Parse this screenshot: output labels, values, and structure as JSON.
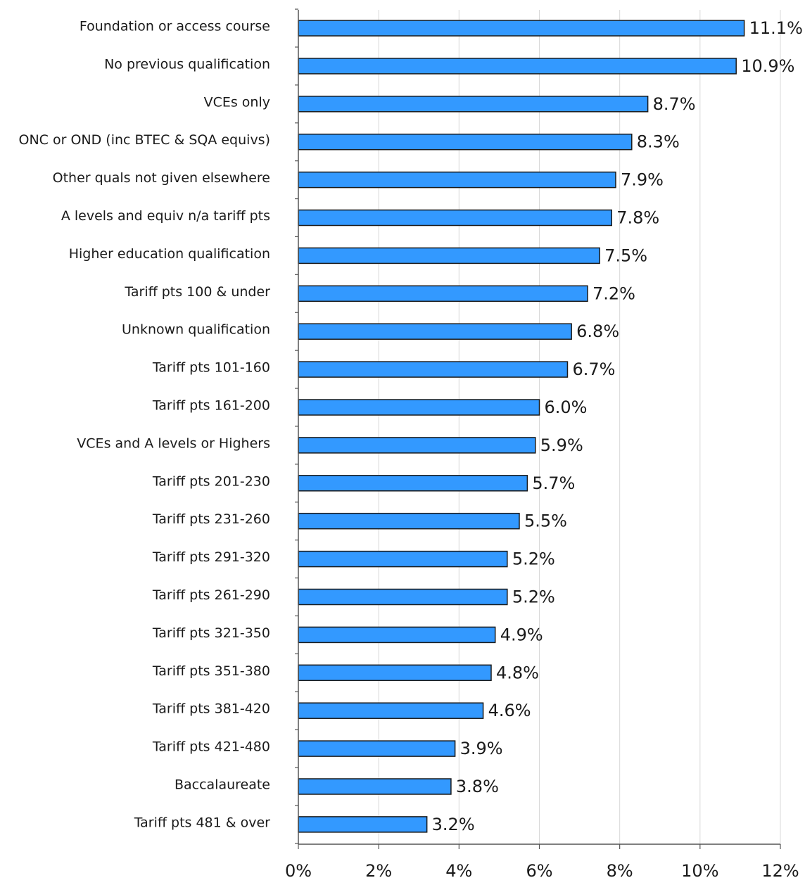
{
  "chart_data": {
    "type": "bar",
    "orientation": "horizontal",
    "categories": [
      "Foundation  or access course",
      "No previous qualification",
      "VCEs only",
      "ONC or OND (inc BTEC & SQA equivs)",
      "Other quals not given elsewhere",
      "A levels and equiv  n/a tariff pts",
      "Higher education qualification",
      "Tariff pts 100 & under",
      "Unknown qualification",
      "Tariff pts 101-160",
      "Tariff pts 161-200",
      "VCEs and A levels or Highers",
      "Tariff pts 201-230",
      "Tariff pts 231-260",
      "Tariff pts 291-320",
      "Tariff pts 261-290",
      "Tariff pts 321-350",
      "Tariff pts 351-380",
      "Tariff pts 381-420",
      "Tariff pts 421-480",
      "Baccalaureate",
      "Tariff pts 481 & over"
    ],
    "values": [
      11.1,
      10.9,
      8.7,
      8.3,
      7.9,
      7.8,
      7.5,
      7.2,
      6.8,
      6.7,
      6.0,
      5.9,
      5.7,
      5.5,
      5.2,
      5.2,
      4.9,
      4.8,
      4.6,
      3.9,
      3.8,
      3.2
    ],
    "value_labels": [
      "11.1%",
      "10.9%",
      "8.7%",
      "8.3%",
      "7.9%",
      "7.8%",
      "7.5%",
      "7.2%",
      "6.8%",
      "6.7%",
      "6.0%",
      "5.9%",
      "5.7%",
      "5.5%",
      "5.2%",
      "5.2%",
      "4.9%",
      "4.8%",
      "4.6%",
      "3.9%",
      "3.8%",
      "3.2%"
    ],
    "x_ticks": [
      0,
      2,
      4,
      6,
      8,
      10,
      12
    ],
    "x_tick_labels": [
      "0%",
      "2%",
      "4%",
      "6%",
      "8%",
      "10%",
      "12%"
    ],
    "xlim": [
      0,
      12
    ],
    "grid": true,
    "bar_color": "#3399ff",
    "bar_edge_color": "#1a1a1a",
    "title": "",
    "xlabel": "",
    "ylabel": ""
  }
}
